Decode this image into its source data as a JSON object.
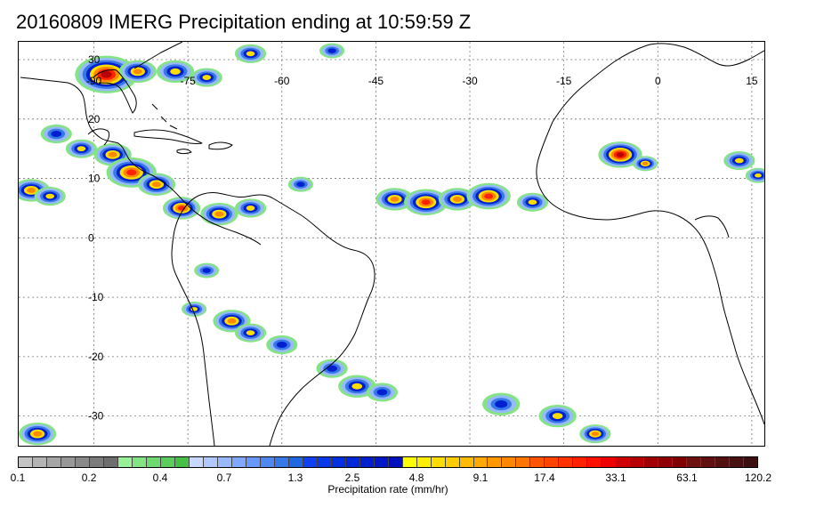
{
  "title": "20160809 IMERG Precipitation ending at 10:59:59 Z",
  "map": {
    "lon_range": [
      -102,
      17
    ],
    "lat_range": [
      -35,
      33
    ],
    "lon_labels": [
      {
        "lon": -90,
        "text": "-90"
      },
      {
        "lon": -75,
        "text": "-75"
      },
      {
        "lon": -60,
        "text": "-60"
      },
      {
        "lon": -45,
        "text": "-45"
      },
      {
        "lon": -30,
        "text": "-30"
      },
      {
        "lon": -15,
        "text": "-15"
      },
      {
        "lon": 0,
        "text": "0"
      },
      {
        "lon": 15,
        "text": "15"
      }
    ],
    "lat_labels": [
      {
        "lat": 30,
        "text": "30"
      },
      {
        "lat": 20,
        "text": "20"
      },
      {
        "lat": 10,
        "text": "10"
      },
      {
        "lat": 0,
        "text": "0"
      },
      {
        "lat": -10,
        "text": "-10"
      },
      {
        "lat": -20,
        "text": "-20"
      },
      {
        "lat": -30,
        "text": "-30"
      }
    ],
    "precip_cells": [
      {
        "lon": -88,
        "lat": 27.5,
        "r": 5,
        "level": 8
      },
      {
        "lon": -83,
        "lat": 28,
        "r": 3,
        "level": 6
      },
      {
        "lon": -77,
        "lat": 28,
        "r": 3,
        "level": 5
      },
      {
        "lon": -72,
        "lat": 27,
        "r": 2.5,
        "level": 5
      },
      {
        "lon": -65,
        "lat": 31,
        "r": 2.5,
        "level": 5
      },
      {
        "lon": -52,
        "lat": 31.5,
        "r": 2,
        "level": 4
      },
      {
        "lon": -96,
        "lat": 17.5,
        "r": 2.5,
        "level": 4
      },
      {
        "lon": -92,
        "lat": 15,
        "r": 2.5,
        "level": 5
      },
      {
        "lon": -87,
        "lat": 14,
        "r": 3,
        "level": 6
      },
      {
        "lon": -84,
        "lat": 11,
        "r": 4,
        "level": 7
      },
      {
        "lon": -80,
        "lat": 9,
        "r": 3,
        "level": 6
      },
      {
        "lon": -76,
        "lat": 5,
        "r": 3,
        "level": 7
      },
      {
        "lon": -70,
        "lat": 4,
        "r": 3,
        "level": 6
      },
      {
        "lon": -65,
        "lat": 5,
        "r": 2.5,
        "level": 5
      },
      {
        "lon": -57,
        "lat": 9,
        "r": 2,
        "level": 4
      },
      {
        "lon": -100,
        "lat": 8,
        "r": 3,
        "level": 6
      },
      {
        "lon": -97,
        "lat": 7,
        "r": 2.5,
        "level": 5
      },
      {
        "lon": -42,
        "lat": 6.5,
        "r": 3,
        "level": 6
      },
      {
        "lon": -37,
        "lat": 6,
        "r": 3.5,
        "level": 7
      },
      {
        "lon": -32,
        "lat": 6.5,
        "r": 3,
        "level": 6
      },
      {
        "lon": -27,
        "lat": 7,
        "r": 3.5,
        "level": 7
      },
      {
        "lon": -20,
        "lat": 6,
        "r": 2.5,
        "level": 5
      },
      {
        "lon": -6,
        "lat": 14,
        "r": 3.5,
        "level": 8
      },
      {
        "lon": -2,
        "lat": 12.5,
        "r": 2,
        "level": 6
      },
      {
        "lon": 13,
        "lat": 13,
        "r": 2.5,
        "level": 5
      },
      {
        "lon": 16,
        "lat": 10.5,
        "r": 2,
        "level": 5
      },
      {
        "lon": -72,
        "lat": -5.5,
        "r": 2,
        "level": 4
      },
      {
        "lon": -74,
        "lat": -12,
        "r": 2,
        "level": 5
      },
      {
        "lon": -68,
        "lat": -14,
        "r": 3,
        "level": 6
      },
      {
        "lon": -65,
        "lat": -16,
        "r": 2.5,
        "level": 5
      },
      {
        "lon": -60,
        "lat": -18,
        "r": 2.5,
        "level": 4
      },
      {
        "lon": -52,
        "lat": -22,
        "r": 2.5,
        "level": 4
      },
      {
        "lon": -48,
        "lat": -25,
        "r": 3,
        "level": 5
      },
      {
        "lon": -44,
        "lat": -26,
        "r": 2.5,
        "level": 4
      },
      {
        "lon": -25,
        "lat": -28,
        "r": 3,
        "level": 4
      },
      {
        "lon": -16,
        "lat": -30,
        "r": 3,
        "level": 5
      },
      {
        "lon": -10,
        "lat": -33,
        "r": 2.5,
        "level": 6
      },
      {
        "lon": -99,
        "lat": -33,
        "r": 3,
        "level": 6
      }
    ]
  },
  "legend": {
    "label": "Precipitation rate (mm/hr)",
    "colors": [
      "#c4c4c4",
      "#b4b4b4",
      "#a6a6a6",
      "#989898",
      "#8a8a8a",
      "#7c7c7c",
      "#6e6e6e",
      "#98f098",
      "#84e484",
      "#70d870",
      "#5ccc5c",
      "#48c048",
      "#c8d8ff",
      "#b0c8ff",
      "#98b8ff",
      "#80a8ff",
      "#6898f8",
      "#5088f0",
      "#3878e8",
      "#2068e0",
      "#1040f0",
      "#0838e8",
      "#0030e0",
      "#0028d8",
      "#0020d0",
      "#0018c8",
      "#0010c0",
      "#ffff00",
      "#ffee00",
      "#ffdd00",
      "#ffcc00",
      "#ffbb00",
      "#ffaa00",
      "#ff9900",
      "#ff8800",
      "#ff7700",
      "#ff5500",
      "#ff4400",
      "#ff3300",
      "#ff2200",
      "#ff1100",
      "#ee0000",
      "#d00000",
      "#b80000",
      "#a00000",
      "#900000",
      "#800000",
      "#6c1010",
      "#601010",
      "#541010",
      "#481010",
      "#3c1010"
    ],
    "ticks": [
      {
        "pos": 0,
        "text": "0.1"
      },
      {
        "pos": 0.0962,
        "text": "0.2"
      },
      {
        "pos": 0.1923,
        "text": "0.4"
      },
      {
        "pos": 0.2788,
        "text": "0.7"
      },
      {
        "pos": 0.375,
        "text": "1.3"
      },
      {
        "pos": 0.4519,
        "text": "2.5"
      },
      {
        "pos": 0.5385,
        "text": "4.8"
      },
      {
        "pos": 0.625,
        "text": "9.1"
      },
      {
        "pos": 0.7115,
        "text": "17.4"
      },
      {
        "pos": 0.8077,
        "text": "33.1"
      },
      {
        "pos": 0.9038,
        "text": "63.1"
      },
      {
        "pos": 1,
        "text": "120.2"
      }
    ]
  }
}
